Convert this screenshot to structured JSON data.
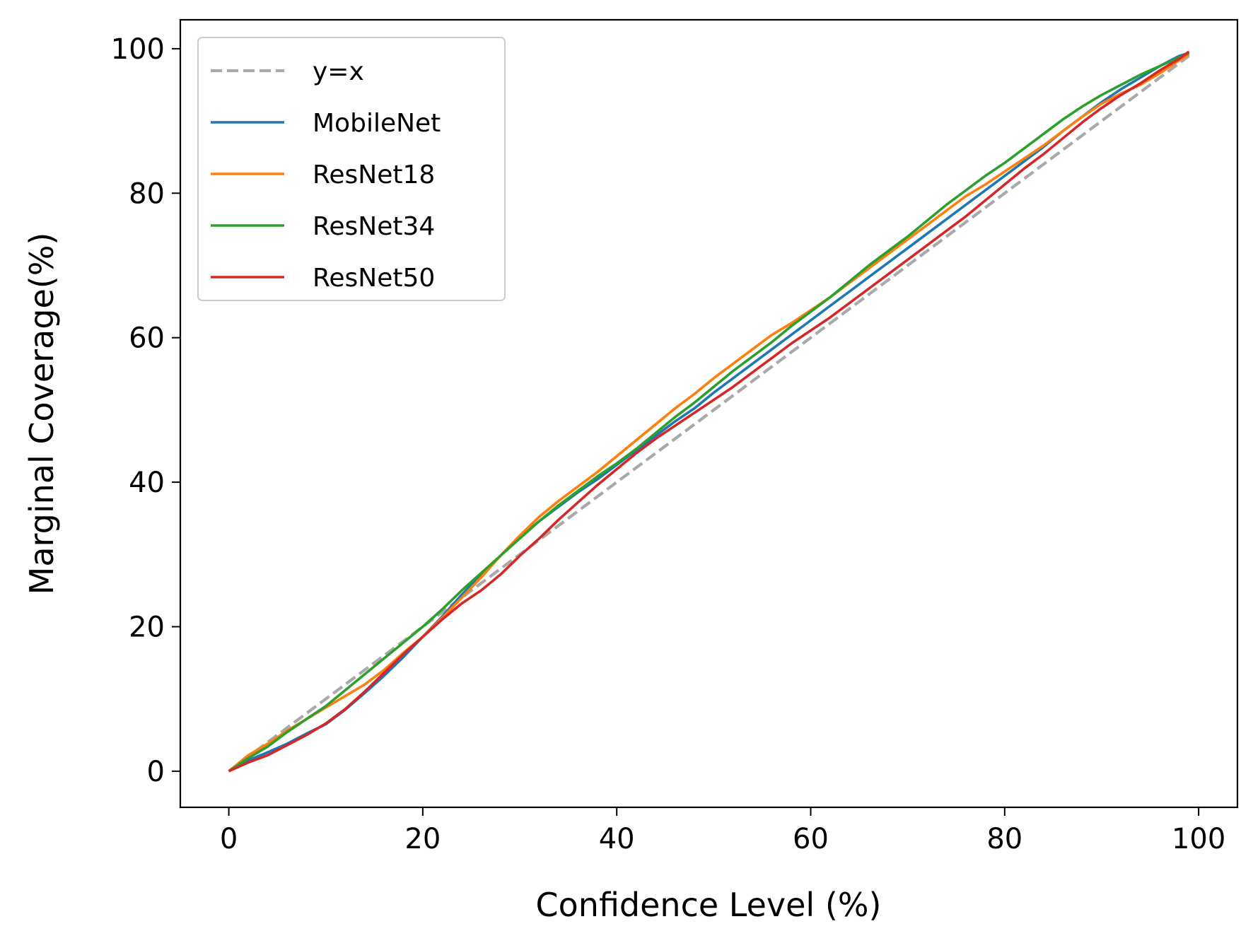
{
  "chart_data": {
    "type": "line",
    "title": "",
    "xlabel": "Confidence Level (%)",
    "ylabel": "Marginal Coverage(%)",
    "xlim": [
      -5,
      104
    ],
    "ylim": [
      -5,
      104
    ],
    "xticks": [
      0,
      20,
      40,
      60,
      80,
      100
    ],
    "yticks": [
      0,
      20,
      40,
      60,
      80,
      100
    ],
    "xtick_labels": [
      "0",
      "20",
      "40",
      "60",
      "80",
      "100"
    ],
    "ytick_labels": [
      "0",
      "20",
      "40",
      "60",
      "80",
      "100"
    ],
    "grid": false,
    "legend": {
      "position": "upper-left",
      "entries": [
        "y=x",
        "MobileNet",
        "ResNet18",
        "ResNet34",
        "ResNet50"
      ]
    },
    "series": [
      {
        "name": "y=x",
        "color": "#a9a9a9",
        "style": "dashed",
        "x": [
          0,
          99
        ],
        "y": [
          0,
          99
        ]
      },
      {
        "name": "MobileNet",
        "color": "#1f77b4",
        "style": "solid",
        "x": [
          0,
          2,
          4,
          6,
          8,
          10,
          12,
          14,
          16,
          18,
          20,
          22,
          24,
          26,
          28,
          30,
          32,
          34,
          36,
          38,
          40,
          42,
          44,
          46,
          48,
          50,
          52,
          54,
          56,
          58,
          60,
          62,
          64,
          66,
          68,
          70,
          72,
          74,
          76,
          78,
          80,
          82,
          84,
          86,
          88,
          90,
          92,
          94,
          96,
          98,
          99
        ],
        "y": [
          0,
          1.5,
          2.6,
          3.8,
          5.2,
          6.5,
          8.5,
          10.8,
          13.2,
          15.8,
          18.6,
          21.4,
          24.4,
          27.2,
          29.8,
          32.4,
          34.6,
          36.6,
          38.6,
          40.4,
          42.4,
          44.4,
          46.4,
          48.4,
          50.2,
          52.4,
          54.4,
          56.4,
          58.4,
          60.4,
          62.4,
          64.4,
          66.4,
          68.4,
          70.4,
          72.4,
          74.4,
          76.4,
          78.4,
          80.4,
          82.4,
          84.4,
          86.4,
          88.6,
          90.6,
          92.6,
          94.4,
          96.0,
          97.6,
          99.0,
          99.4
        ]
      },
      {
        "name": "ResNet18",
        "color": "#ff7f0e",
        "style": "solid",
        "x": [
          0,
          2,
          4,
          6,
          8,
          10,
          12,
          14,
          16,
          18,
          20,
          22,
          24,
          26,
          28,
          30,
          32,
          34,
          36,
          38,
          40,
          42,
          44,
          46,
          48,
          50,
          52,
          54,
          56,
          58,
          60,
          62,
          64,
          66,
          68,
          70,
          72,
          74,
          76,
          78,
          80,
          82,
          84,
          86,
          88,
          90,
          92,
          94,
          96,
          98,
          99
        ],
        "y": [
          0,
          2.2,
          3.8,
          5.6,
          7.2,
          8.8,
          10.4,
          12.0,
          14.0,
          16.4,
          18.6,
          21.2,
          24.0,
          26.8,
          29.8,
          32.6,
          35.2,
          37.4,
          39.4,
          41.4,
          43.6,
          45.8,
          48.0,
          50.2,
          52.2,
          54.4,
          56.4,
          58.4,
          60.4,
          62.0,
          63.8,
          65.6,
          67.6,
          69.6,
          71.6,
          73.6,
          75.6,
          77.6,
          79.6,
          81.2,
          83.0,
          84.8,
          86.6,
          88.6,
          90.6,
          92.4,
          93.8,
          95.0,
          96.6,
          98.4,
          99.2
        ]
      },
      {
        "name": "ResNet34",
        "color": "#2ca02c",
        "style": "solid",
        "x": [
          0,
          2,
          4,
          6,
          8,
          10,
          12,
          14,
          16,
          18,
          20,
          22,
          24,
          26,
          28,
          30,
          32,
          34,
          36,
          38,
          40,
          42,
          44,
          46,
          48,
          50,
          52,
          54,
          56,
          58,
          60,
          62,
          64,
          66,
          68,
          70,
          72,
          74,
          76,
          78,
          80,
          82,
          84,
          86,
          88,
          90,
          92,
          94,
          96,
          98,
          99
        ],
        "y": [
          0,
          1.8,
          3.4,
          5.4,
          7.2,
          9.0,
          11.2,
          13.4,
          15.6,
          17.8,
          20.0,
          22.4,
          25.0,
          27.4,
          29.8,
          32.2,
          34.6,
          36.8,
          38.8,
          40.8,
          42.6,
          44.6,
          46.8,
          49.0,
          51.0,
          53.2,
          55.4,
          57.4,
          59.4,
          61.6,
          63.6,
          65.6,
          67.8,
          70.0,
          72.0,
          74.0,
          76.2,
          78.4,
          80.4,
          82.4,
          84.2,
          86.2,
          88.2,
          90.2,
          92.0,
          93.6,
          95.0,
          96.4,
          97.6,
          98.8,
          99.4
        ]
      },
      {
        "name": "ResNet50",
        "color": "#d62728",
        "style": "solid",
        "x": [
          0,
          2,
          4,
          6,
          8,
          10,
          12,
          14,
          16,
          18,
          20,
          22,
          24,
          26,
          28,
          30,
          32,
          34,
          36,
          38,
          40,
          42,
          44,
          46,
          48,
          50,
          52,
          54,
          56,
          58,
          60,
          62,
          64,
          66,
          68,
          70,
          72,
          74,
          76,
          78,
          80,
          82,
          84,
          86,
          88,
          90,
          92,
          94,
          96,
          98,
          99
        ],
        "y": [
          0,
          1.2,
          2.2,
          3.6,
          5.0,
          6.6,
          8.6,
          11.0,
          13.6,
          16.2,
          18.6,
          21.0,
          23.2,
          25.0,
          27.2,
          29.8,
          32.2,
          34.8,
          37.2,
          39.6,
          41.8,
          44.0,
          46.0,
          47.8,
          49.6,
          51.4,
          53.2,
          55.2,
          57.2,
          59.2,
          61.0,
          62.8,
          64.8,
          66.8,
          68.8,
          70.8,
          72.8,
          74.8,
          76.8,
          79.0,
          81.2,
          83.4,
          85.4,
          87.6,
          89.8,
          91.8,
          93.6,
          95.2,
          97.0,
          98.6,
          99.6
        ]
      }
    ]
  }
}
